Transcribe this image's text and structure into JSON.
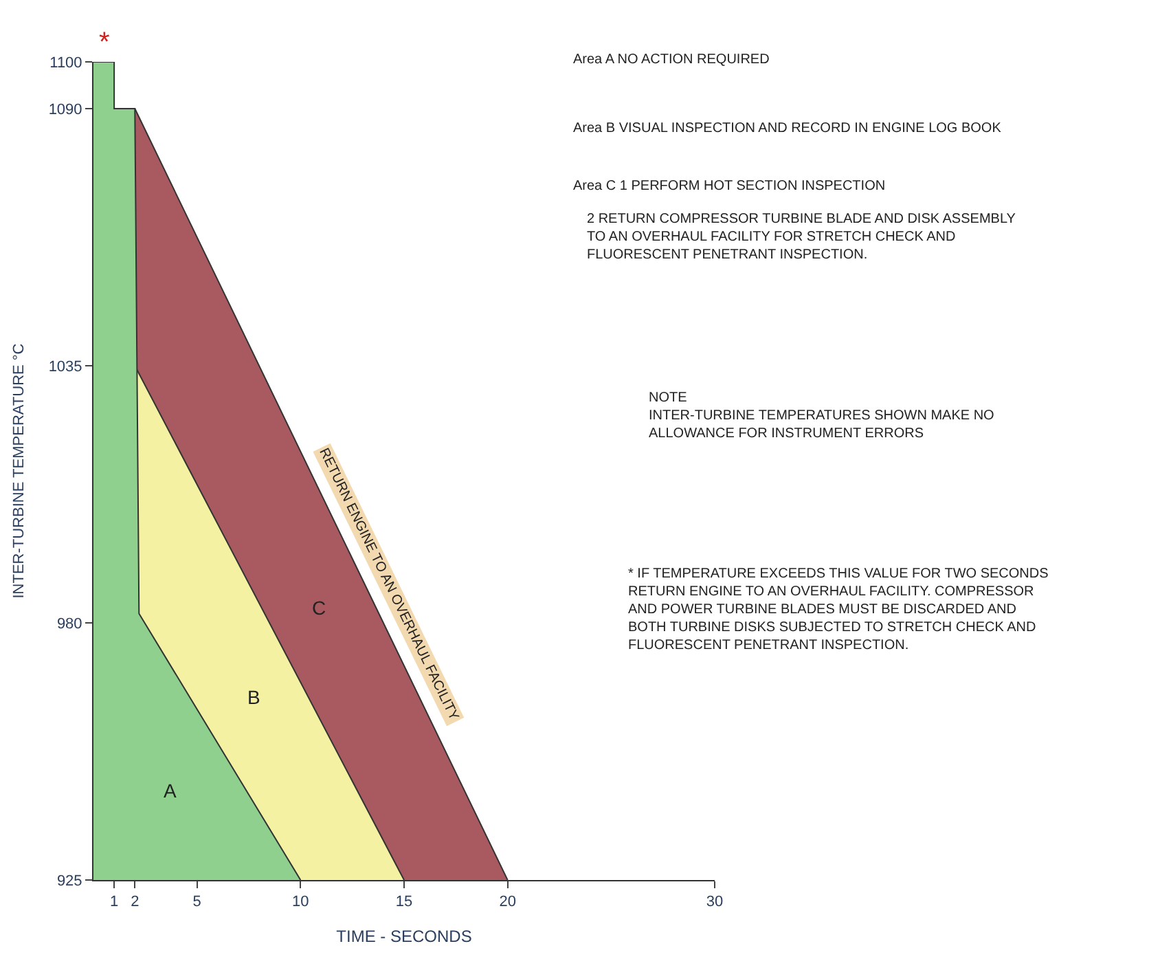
{
  "chart_data": {
    "type": "area",
    "xlabel": "TIME - SECONDS",
    "ylabel": "INTER-TURBINE TEMPERATURE °C",
    "xlim": [
      0,
      30
    ],
    "xticks": [
      1,
      2,
      5,
      10,
      15,
      20,
      30
    ],
    "ylim": [
      925,
      1100
    ],
    "yticks": [
      925,
      980,
      1035,
      1090,
      1100
    ],
    "legend": false,
    "series": [
      {
        "name": "C",
        "color": "#a85a60",
        "x": [
          2,
          20
        ],
        "values": [
          1090,
          925
        ]
      },
      {
        "name": "B",
        "color": "#f4f2a2",
        "x": [
          2,
          15
        ],
        "values": [
          1035,
          925
        ]
      },
      {
        "name": "A",
        "color": "#8fd08f",
        "x": [
          0,
          1,
          1,
          2,
          2.2,
          10
        ],
        "values": [
          1100,
          1100,
          1090,
          1090,
          982,
          925
        ]
      }
    ],
    "annotations": [
      "Area A NO ACTION REQUIRED",
      "Area B VISUAL INSPECTION AND RECORD IN ENGINE LOG BOOK",
      "Area C 1 PERFORM HOT SECTION INSPECTION",
      "2 RETURN COMPRESSOR TURBINE BLADE AND DISK ASSEMBLY\nTO AN OVERHAUL FACILITY FOR STRETCH CHECK AND\nFLUORESCENT PENETRANT INSPECTION.",
      "NOTE\nINTER-TURBINE TEMPERATURES SHOWN MAKE NO\nALLOWANCE FOR INSTRUMENT ERRORS",
      "* IF TEMPERATURE EXCEEDS THIS VALUE FOR TWO SECONDS\nRETURN ENGINE TO AN OVERHAUL FACILITY. COMPRESSOR\nAND POWER TURBINE BLADES MUST BE DISCARDED AND\nBOTH TURBINE DISKS SUBJECTED TO STRETCH CHECK AND\nFLUORESCENT PENETRANT INSPECTION.",
      "RETURN ENGINE TO AN OVERHAUL FACILITY",
      {
        "text": "*",
        "x": 0.5,
        "y": 1100
      }
    ]
  }
}
